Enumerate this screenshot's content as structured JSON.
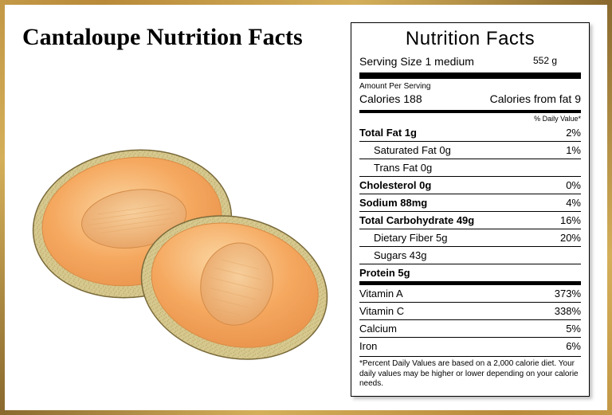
{
  "title": "Cantaloupe Nutrition Facts",
  "panel": {
    "heading": "Nutrition Facts",
    "serving_label": "Serving Size 1 medium",
    "serving_grams": "552 g",
    "amount_per_serving": "Amount Per Serving",
    "calories_label": "Calories 188",
    "calories_from_fat": "Calories from fat 9",
    "dv_header": "% Daily Value*",
    "rows": [
      {
        "label": "Total Fat 1g",
        "bold": true,
        "pct": "2%"
      },
      {
        "label": "Saturated Fat 0g",
        "indent": true,
        "pct": "1%"
      },
      {
        "label": "Trans Fat 0g",
        "indent": true,
        "pct": ""
      },
      {
        "label": "Cholesterol 0g",
        "bold": true,
        "pct": "0%"
      },
      {
        "label": "Sodium 88mg",
        "bold": true,
        "pct": "4%"
      },
      {
        "label": "Total Carbohydrate 49g",
        "bold": true,
        "pct": "16%"
      },
      {
        "label": "Dietary Fiber 5g",
        "indent": true,
        "pct": "20%"
      },
      {
        "label": "Sugars 43g",
        "indent": true,
        "pct": ""
      },
      {
        "label": "Protein 5g",
        "bold": true,
        "pct": ""
      }
    ],
    "vitamins": [
      {
        "label": "Vitamin A",
        "pct": "373%"
      },
      {
        "label": "Vitamin C",
        "pct": "338%"
      },
      {
        "label": "Calcium",
        "pct": "5%"
      },
      {
        "label": "Iron",
        "pct": "6%"
      }
    ],
    "footnote": "*Percent Daily Values are based on a 2,000 calorie diet. Your daily values may be higher or lower depending on your calorie needs."
  },
  "illustration": {
    "rind_outer": "#d6c98f",
    "rind_pattern": "#c9b877",
    "flesh_light": "#fbc98a",
    "flesh_mid": "#f5a85f",
    "flesh_dark": "#e8904a",
    "cavity": "#f0b577",
    "cavity_highlight": "#f7cf9c",
    "stroke": "#7a6a3a"
  }
}
